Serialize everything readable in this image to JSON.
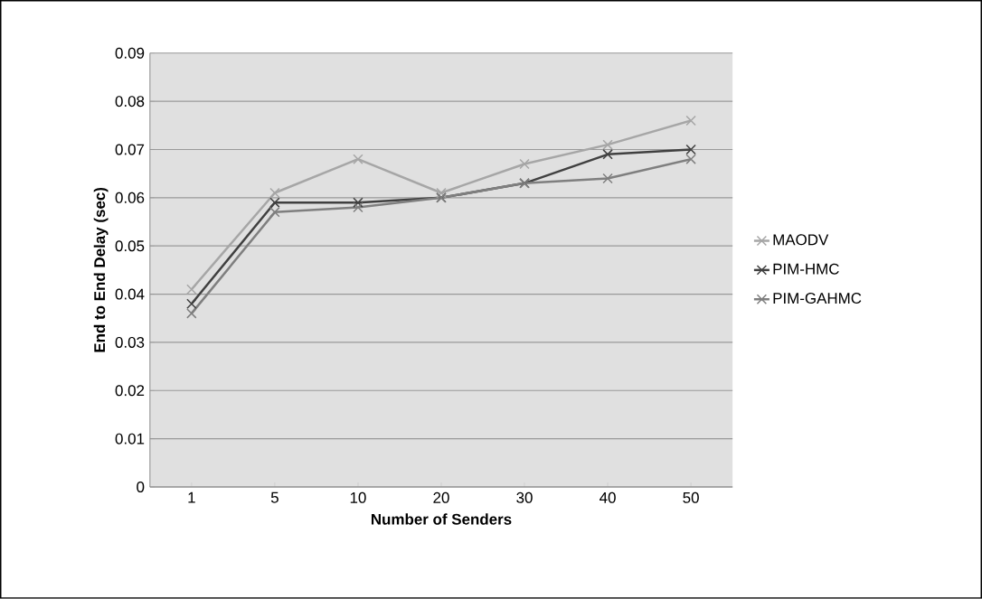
{
  "chart_data": {
    "type": "line",
    "xlabel": "Number of Senders",
    "ylabel": "End to End Delay (sec)",
    "categories": [
      "1",
      "5",
      "10",
      "20",
      "30",
      "40",
      "50"
    ],
    "series": [
      {
        "name": "MAODV",
        "color": "#a6a6a6",
        "values": [
          0.041,
          0.061,
          0.068,
          0.061,
          0.067,
          0.071,
          0.076
        ]
      },
      {
        "name": "PIM-HMC",
        "color": "#404040",
        "values": [
          0.038,
          0.059,
          0.059,
          0.06,
          0.063,
          0.069,
          0.07
        ]
      },
      {
        "name": "PIM-GAHMC",
        "color": "#7f7f7f",
        "values": [
          0.036,
          0.057,
          0.058,
          0.06,
          0.063,
          0.064,
          0.068
        ]
      }
    ],
    "ylim": [
      0,
      0.09
    ],
    "yticks": [
      0,
      0.01,
      0.02,
      0.03,
      0.04,
      0.05,
      0.06,
      0.07,
      0.08,
      0.09
    ],
    "grid": "y",
    "legend": "right",
    "marker": "cross",
    "line_style": "solid"
  }
}
